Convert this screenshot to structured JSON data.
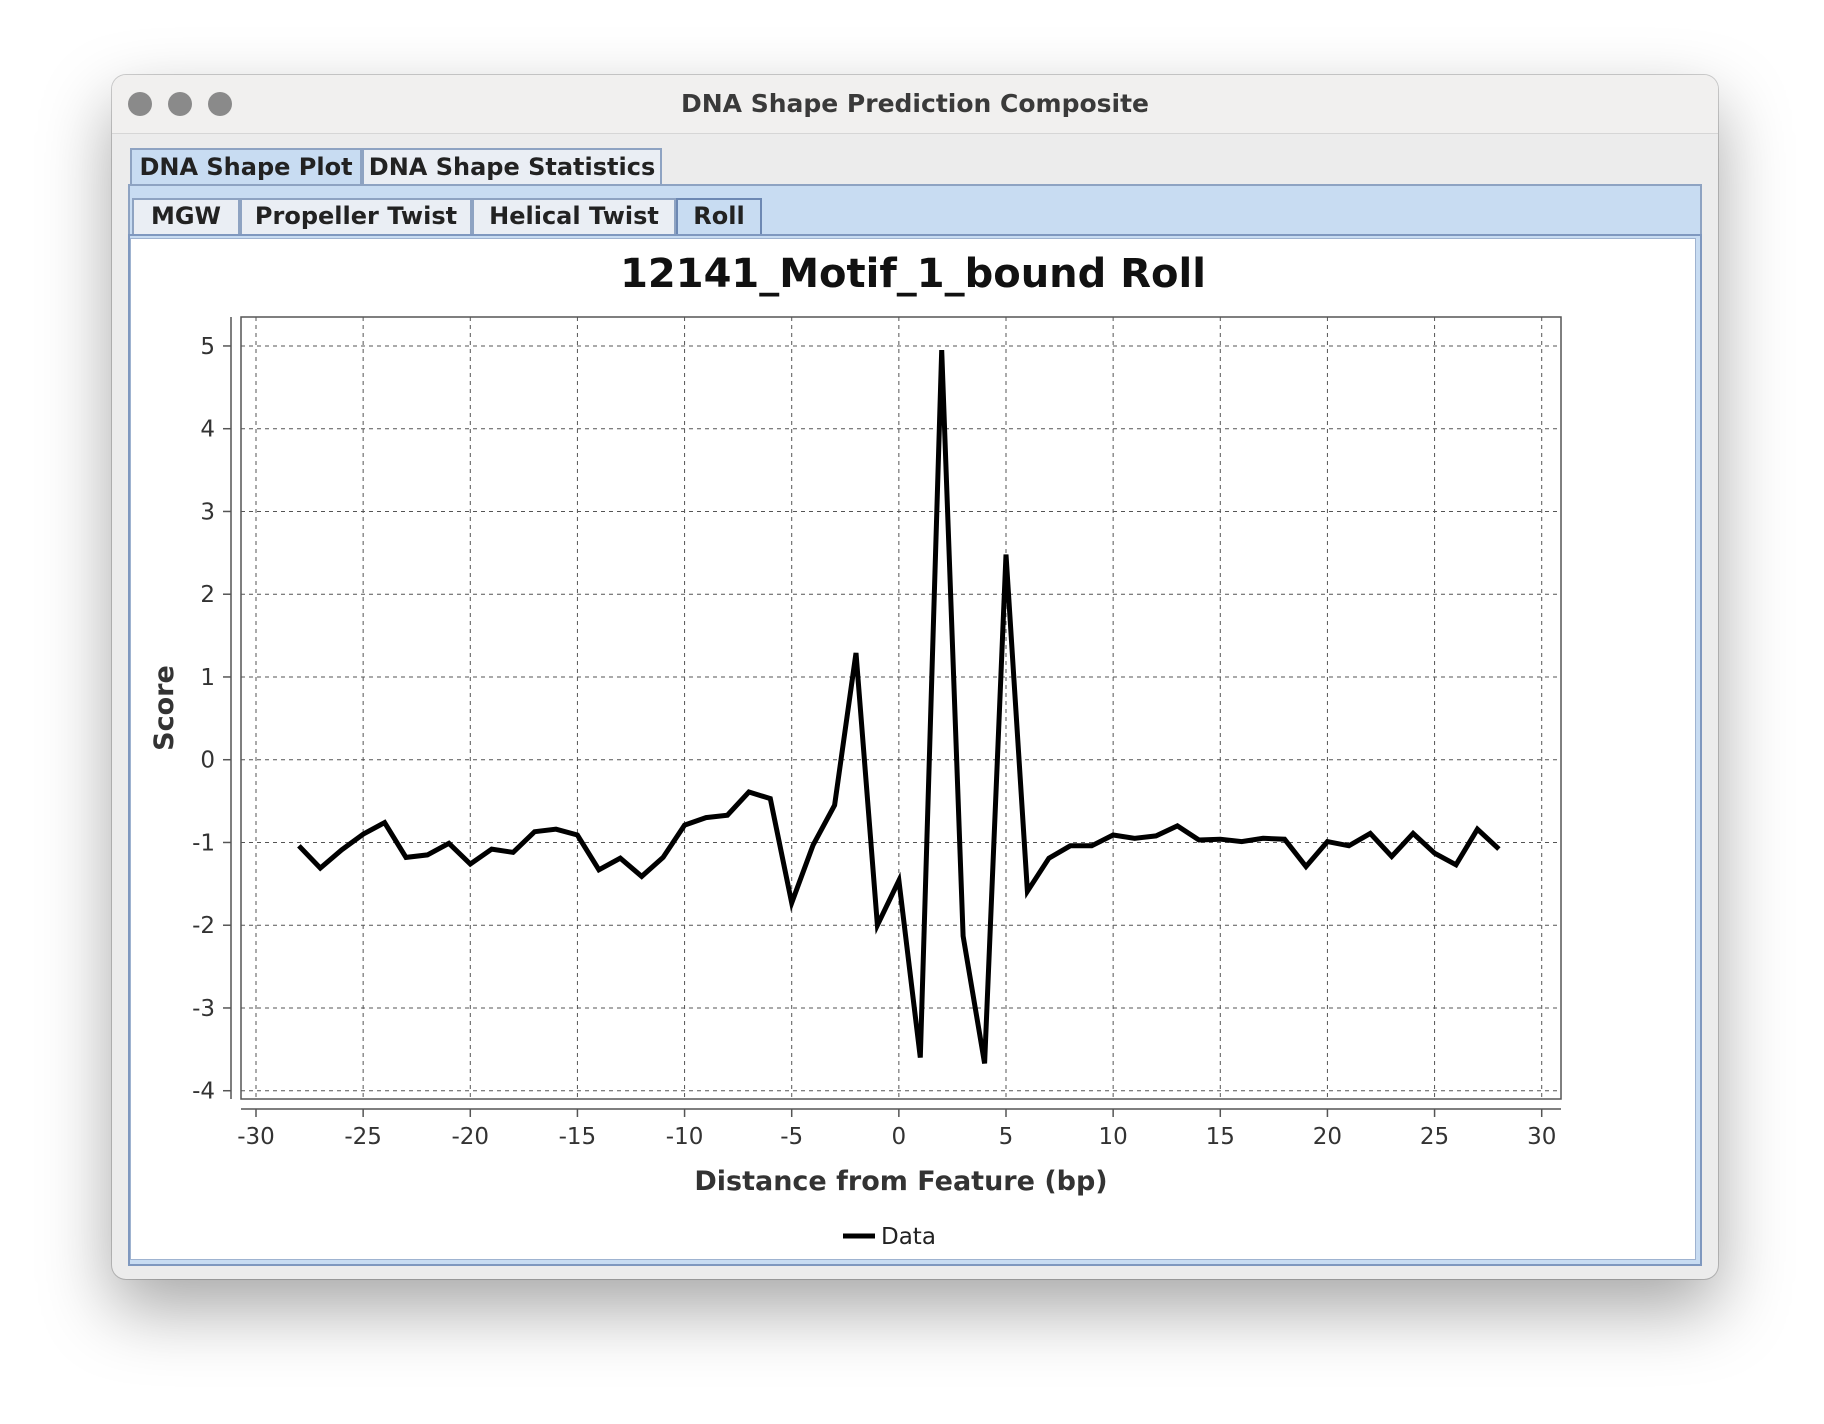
{
  "window": {
    "title": "DNA Shape Prediction Composite"
  },
  "tabs": [
    {
      "label": "DNA Shape Plot",
      "selected": true
    },
    {
      "label": "DNA Shape Statistics",
      "selected": false
    }
  ],
  "subtabs": [
    {
      "label": "MGW",
      "selected": false
    },
    {
      "label": "Propeller Twist",
      "selected": false
    },
    {
      "label": "Helical Twist",
      "selected": false
    },
    {
      "label": "Roll",
      "selected": true
    }
  ],
  "chart_data": {
    "type": "line",
    "title": "12141_Motif_1_bound Roll",
    "xlabel": "Distance from Feature (bp)",
    "ylabel": "Score",
    "xlim": [
      -30.7,
      30.9
    ],
    "ylim": [
      -4.1,
      5.35
    ],
    "xticks": [
      -30,
      -25,
      -20,
      -15,
      -10,
      -5,
      0,
      5,
      10,
      15,
      20,
      25,
      30
    ],
    "yticks": [
      -4,
      -3,
      -2,
      -1,
      0,
      1,
      2,
      3,
      4,
      5
    ],
    "grid": true,
    "legend_position": "bottom-center",
    "series": [
      {
        "name": "Data",
        "color": "#000000",
        "x": [
          -28,
          -27,
          -26,
          -25,
          -24,
          -23,
          -22,
          -21,
          -20,
          -19,
          -18,
          -17,
          -16,
          -15,
          -14,
          -13,
          -12,
          -11,
          -10,
          -9,
          -8,
          -7,
          -6,
          -5,
          -4,
          -3,
          -2,
          -1,
          0,
          1,
          2,
          3,
          4,
          5,
          6,
          7,
          8,
          9,
          10,
          11,
          12,
          13,
          14,
          15,
          16,
          17,
          18,
          19,
          20,
          21,
          22,
          23,
          24,
          25,
          26,
          27,
          28
        ],
        "y": [
          -1.04,
          -1.31,
          -1.09,
          -0.9,
          -0.76,
          -1.18,
          -1.15,
          -1.01,
          -1.26,
          -1.08,
          -1.12,
          -0.87,
          -0.84,
          -0.91,
          -1.33,
          -1.19,
          -1.41,
          -1.18,
          -0.79,
          -0.7,
          -0.67,
          -0.39,
          -0.47,
          -1.73,
          -1.03,
          -0.55,
          1.29,
          -2.0,
          -1.46,
          -3.6,
          4.95,
          -2.13,
          -3.67,
          2.48,
          -1.59,
          -1.19,
          -1.04,
          -1.04,
          -0.91,
          -0.95,
          -0.92,
          -0.8,
          -0.97,
          -0.96,
          -0.99,
          -0.95,
          -0.96,
          -1.29,
          -0.99,
          -1.04,
          -0.89,
          -1.17,
          -0.89,
          -1.13,
          -1.27,
          -0.84,
          -1.08
        ]
      }
    ]
  }
}
